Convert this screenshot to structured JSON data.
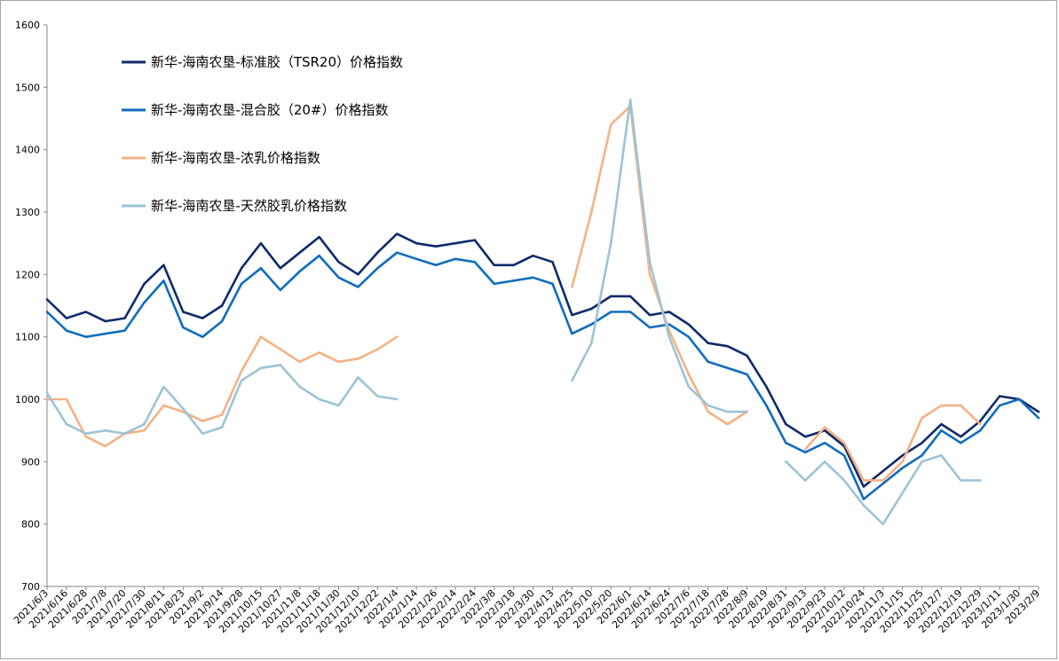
{
  "chart_data": {
    "type": "line",
    "title": "",
    "xlabel": "",
    "ylabel": "",
    "ylim": [
      700,
      1600
    ],
    "yticks": [
      700,
      800,
      900,
      1000,
      1100,
      1200,
      1300,
      1400,
      1500,
      1600
    ],
    "x": [
      "2021/6/3",
      "2021/6/16",
      "2021/6/28",
      "2021/7/8",
      "2021/7/20",
      "2021/7/30",
      "2021/8/11",
      "2021/8/23",
      "2021/9/2",
      "2021/9/14",
      "2021/9/28",
      "2021/10/15",
      "2021/10/27",
      "2021/11/8",
      "2021/11/18",
      "2021/11/30",
      "2021/12/10",
      "2021/12/22",
      "2022/1/4",
      "2022/1/14",
      "2022/1/26",
      "2022/2/14",
      "2022/2/24",
      "2022/3/8",
      "2022/3/18",
      "2022/3/30",
      "2022/4/13",
      "2022/4/25",
      "2022/5/10",
      "2022/5/20",
      "2022/6/1",
      "2022/6/14",
      "2022/6/24",
      "2022/7/6",
      "2022/7/18",
      "2022/7/28",
      "2022/8/9",
      "2022/8/19",
      "2022/8/31",
      "2022/9/13",
      "2022/9/23",
      "2022/10/12",
      "2022/10/24",
      "2022/11/3",
      "2022/11/15",
      "2022/11/25",
      "2022/12/7",
      "2022/12/19",
      "2022/12/29",
      "2023/1/11",
      "2023/1/30",
      "2023/2/9"
    ],
    "legend_position": "top-left",
    "grid": false,
    "series": [
      {
        "name": "新华-海南农垦-标准胶（TSR20）价格指数",
        "color": "#0f2a6b",
        "values": [
          1160,
          1130,
          1140,
          1125,
          1130,
          1185,
          1215,
          1140,
          1130,
          1150,
          1210,
          1250,
          1210,
          1235,
          1260,
          1220,
          1200,
          1235,
          1265,
          1250,
          1245,
          1250,
          1255,
          1215,
          1215,
          1230,
          1220,
          1135,
          1145,
          1165,
          1165,
          1135,
          1140,
          1120,
          1090,
          1085,
          1070,
          1020,
          960,
          940,
          950,
          925,
          860,
          885,
          910,
          930,
          960,
          940,
          965,
          1005,
          1000,
          980
        ]
      },
      {
        "name": "新华-海南农垦-混合胶（20#）价格指数",
        "color": "#0f6cbd",
        "values": [
          1140,
          1110,
          1100,
          1105,
          1110,
          1155,
          1190,
          1115,
          1100,
          1125,
          1185,
          1210,
          1175,
          1205,
          1230,
          1195,
          1180,
          1210,
          1235,
          1225,
          1215,
          1225,
          1220,
          1185,
          1190,
          1195,
          1185,
          1105,
          1120,
          1140,
          1140,
          1115,
          1120,
          1100,
          1060,
          1050,
          1040,
          990,
          930,
          915,
          930,
          910,
          840,
          865,
          890,
          910,
          950,
          930,
          950,
          990,
          1000,
          970
        ]
      },
      {
        "name": "新华-海南农垦-浓乳价格指数",
        "color": "#f4b183",
        "values": [
          1000,
          1000,
          940,
          925,
          945,
          950,
          990,
          980,
          965,
          975,
          1045,
          1100,
          1080,
          1060,
          1075,
          1060,
          1065,
          1080,
          1100,
          null,
          null,
          null,
          null,
          null,
          null,
          null,
          null,
          1180,
          1300,
          1440,
          1470,
          1200,
          1110,
          1040,
          980,
          960,
          980,
          null,
          null,
          920,
          955,
          930,
          870,
          870,
          900,
          970,
          990,
          990,
          960,
          null,
          null,
          null
        ]
      },
      {
        "name": "新华-海南农垦-天然胶乳价格指数",
        "color": "#9dc3d6",
        "values": [
          1010,
          960,
          945,
          950,
          945,
          960,
          1020,
          985,
          945,
          955,
          1030,
          1050,
          1055,
          1020,
          1000,
          990,
          1035,
          1005,
          1000,
          null,
          null,
          null,
          null,
          null,
          null,
          null,
          null,
          1030,
          1090,
          1250,
          1480,
          1220,
          1100,
          1020,
          990,
          980,
          980,
          null,
          900,
          870,
          900,
          870,
          830,
          800,
          850,
          900,
          910,
          870,
          870,
          null,
          null,
          null
        ]
      }
    ]
  }
}
